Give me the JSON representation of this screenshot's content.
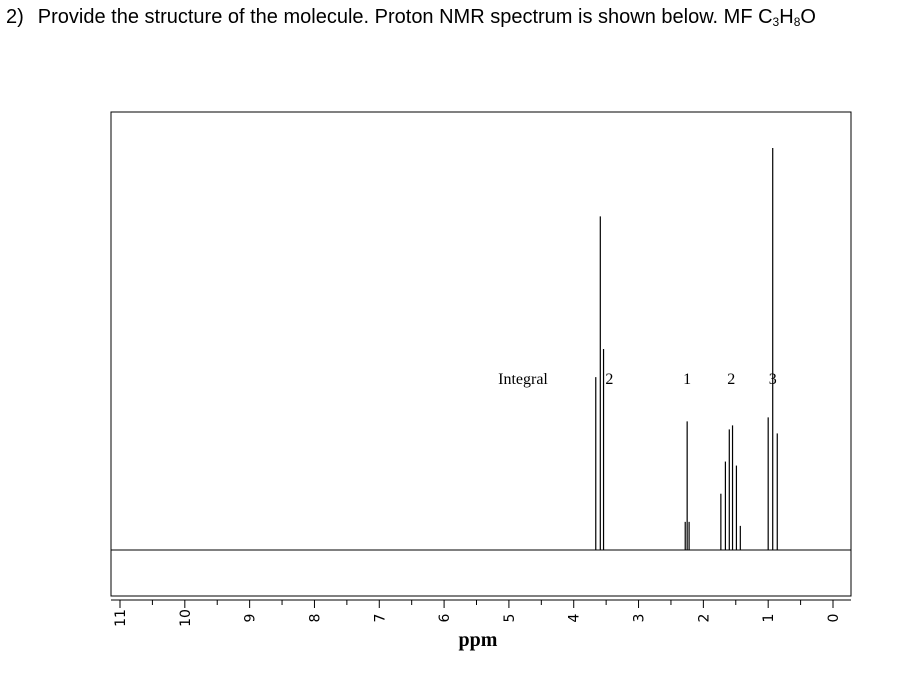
{
  "question": {
    "number": "2)",
    "text": "Provide the structure of the molecule. Proton NMR spectrum is shown below. MF C",
    "formula_c": "3",
    "formula_h": "H",
    "formula_h_count": "8",
    "formula_o": "O"
  },
  "chart_data": {
    "type": "line",
    "title": "",
    "xlabel": "ppm",
    "ylabel": "",
    "x_reversed": true,
    "xlim": [
      11,
      0
    ],
    "ylim": [
      0,
      1
    ],
    "grid": false,
    "x_ticks": [
      "11",
      "10",
      "9",
      "8",
      "7",
      "6",
      "5",
      "4",
      "3",
      "2",
      "1",
      "0"
    ],
    "x_tick_values": [
      11,
      10,
      9,
      8,
      7,
      6,
      5,
      4,
      3,
      2,
      1,
      0
    ],
    "integral_label": "Integral",
    "integrals": [
      {
        "ppm": 3.45,
        "value": "2"
      },
      {
        "ppm": 2.25,
        "value": "1"
      },
      {
        "ppm": 1.57,
        "value": "2"
      },
      {
        "ppm": 0.93,
        "value": "3"
      }
    ],
    "peaks": [
      {
        "ppm": 3.66,
        "height": 0.43
      },
      {
        "ppm": 3.59,
        "height": 0.83
      },
      {
        "ppm": 3.54,
        "height": 0.5
      },
      {
        "ppm": 2.25,
        "height": 0.32
      },
      {
        "ppm": 2.28,
        "height": 0.07
      },
      {
        "ppm": 2.22,
        "height": 0.07
      },
      {
        "ppm": 1.73,
        "height": 0.14
      },
      {
        "ppm": 1.66,
        "height": 0.22
      },
      {
        "ppm": 1.6,
        "height": 0.3
      },
      {
        "ppm": 1.55,
        "height": 0.31
      },
      {
        "ppm": 1.49,
        "height": 0.21
      },
      {
        "ppm": 1.43,
        "height": 0.06
      },
      {
        "ppm": 1.0,
        "height": 0.33
      },
      {
        "ppm": 0.93,
        "height": 1.0
      },
      {
        "ppm": 0.86,
        "height": 0.29
      }
    ]
  }
}
